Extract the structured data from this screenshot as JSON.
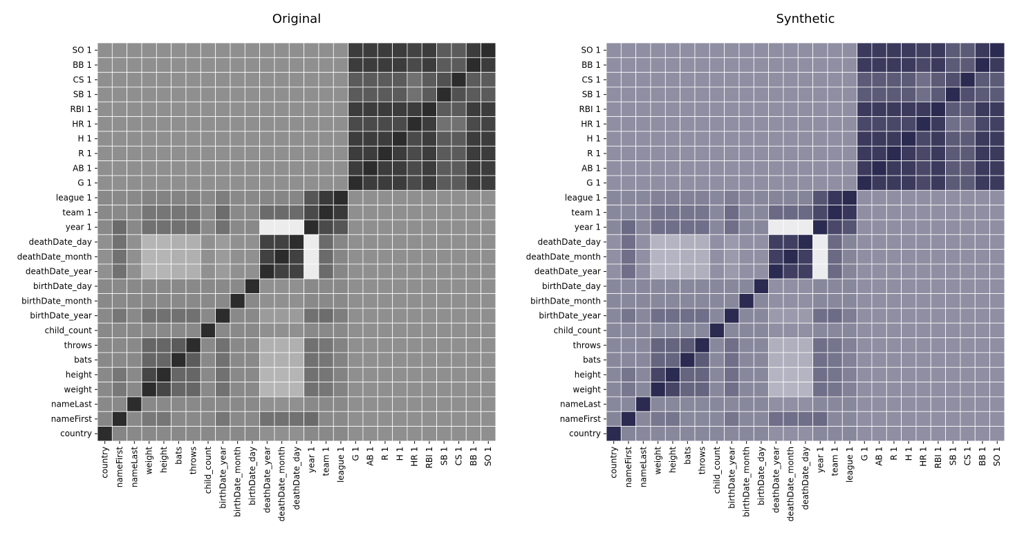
{
  "chart_data": [
    {
      "type": "heatmap",
      "title": "Original",
      "colormap": [
        "#ffffff",
        "#2c2c2c"
      ],
      "x_categories": [
        "country",
        "nameFirst",
        "nameLast",
        "weight",
        "height",
        "bats",
        "throws",
        "child_count",
        "birthDate_year",
        "birthDate_month",
        "birthDate_day",
        "deathDate_year",
        "deathDate_month",
        "deathDate_day",
        "year 1",
        "team 1",
        "league 1",
        "G 1",
        "AB 1",
        "R 1",
        "H 1",
        "HR 1",
        "RBI 1",
        "SB 1",
        "CS 1",
        "BB 1",
        "SO 1"
      ],
      "y_categories_top_to_bottom": [
        "SO 1",
        "BB 1",
        "CS 1",
        "SB 1",
        "RBI 1",
        "HR 1",
        "H 1",
        "R 1",
        "AB 1",
        "G 1",
        "league 1",
        "team 1",
        "year 1",
        "deathDate_day",
        "deathDate_month",
        "deathDate_year",
        "birthDate_day",
        "birthDate_month",
        "birthDate_year",
        "child_count",
        "throws",
        "bats",
        "height",
        "weight",
        "nameLast",
        "nameFirst",
        "country"
      ],
      "grid_lines": true,
      "colorbar": false
    },
    {
      "type": "heatmap",
      "title": "Synthetic",
      "colormap": [
        "#ffffff",
        "#2b2a50"
      ],
      "x_categories": [
        "country",
        "nameFirst",
        "nameLast",
        "weight",
        "height",
        "bats",
        "throws",
        "child_count",
        "birthDate_year",
        "birthDate_month",
        "birthDate_day",
        "deathDate_year",
        "deathDate_month",
        "deathDate_day",
        "year 1",
        "team 1",
        "league 1",
        "G 1",
        "AB 1",
        "R 1",
        "H 1",
        "HR 1",
        "RBI 1",
        "SB 1",
        "CS 1",
        "BB 1",
        "SO 1"
      ],
      "y_categories_top_to_bottom": [
        "SO 1",
        "BB 1",
        "CS 1",
        "SB 1",
        "RBI 1",
        "HR 1",
        "H 1",
        "R 1",
        "AB 1",
        "G 1",
        "league 1",
        "team 1",
        "year 1",
        "deathDate_day",
        "deathDate_month",
        "deathDate_year",
        "birthDate_day",
        "birthDate_month",
        "birthDate_year",
        "child_count",
        "throws",
        "bats",
        "height",
        "weight",
        "nameLast",
        "nameFirst",
        "country"
      ],
      "grid_lines": true,
      "colorbar": false
    }
  ],
  "correlation_matrix": {
    "variables": [
      "country",
      "nameFirst",
      "nameLast",
      "weight",
      "height",
      "bats",
      "throws",
      "child_count",
      "birthDate_year",
      "birthDate_month",
      "birthDate_day",
      "deathDate_year",
      "deathDate_month",
      "deathDate_day",
      "year 1",
      "team 1",
      "league 1",
      "G 1",
      "AB 1",
      "R 1",
      "H 1",
      "HR 1",
      "RBI 1",
      "SB 1",
      "CS 1",
      "BB 1",
      "SO 1"
    ],
    "range": [
      -1,
      1
    ]
  }
}
